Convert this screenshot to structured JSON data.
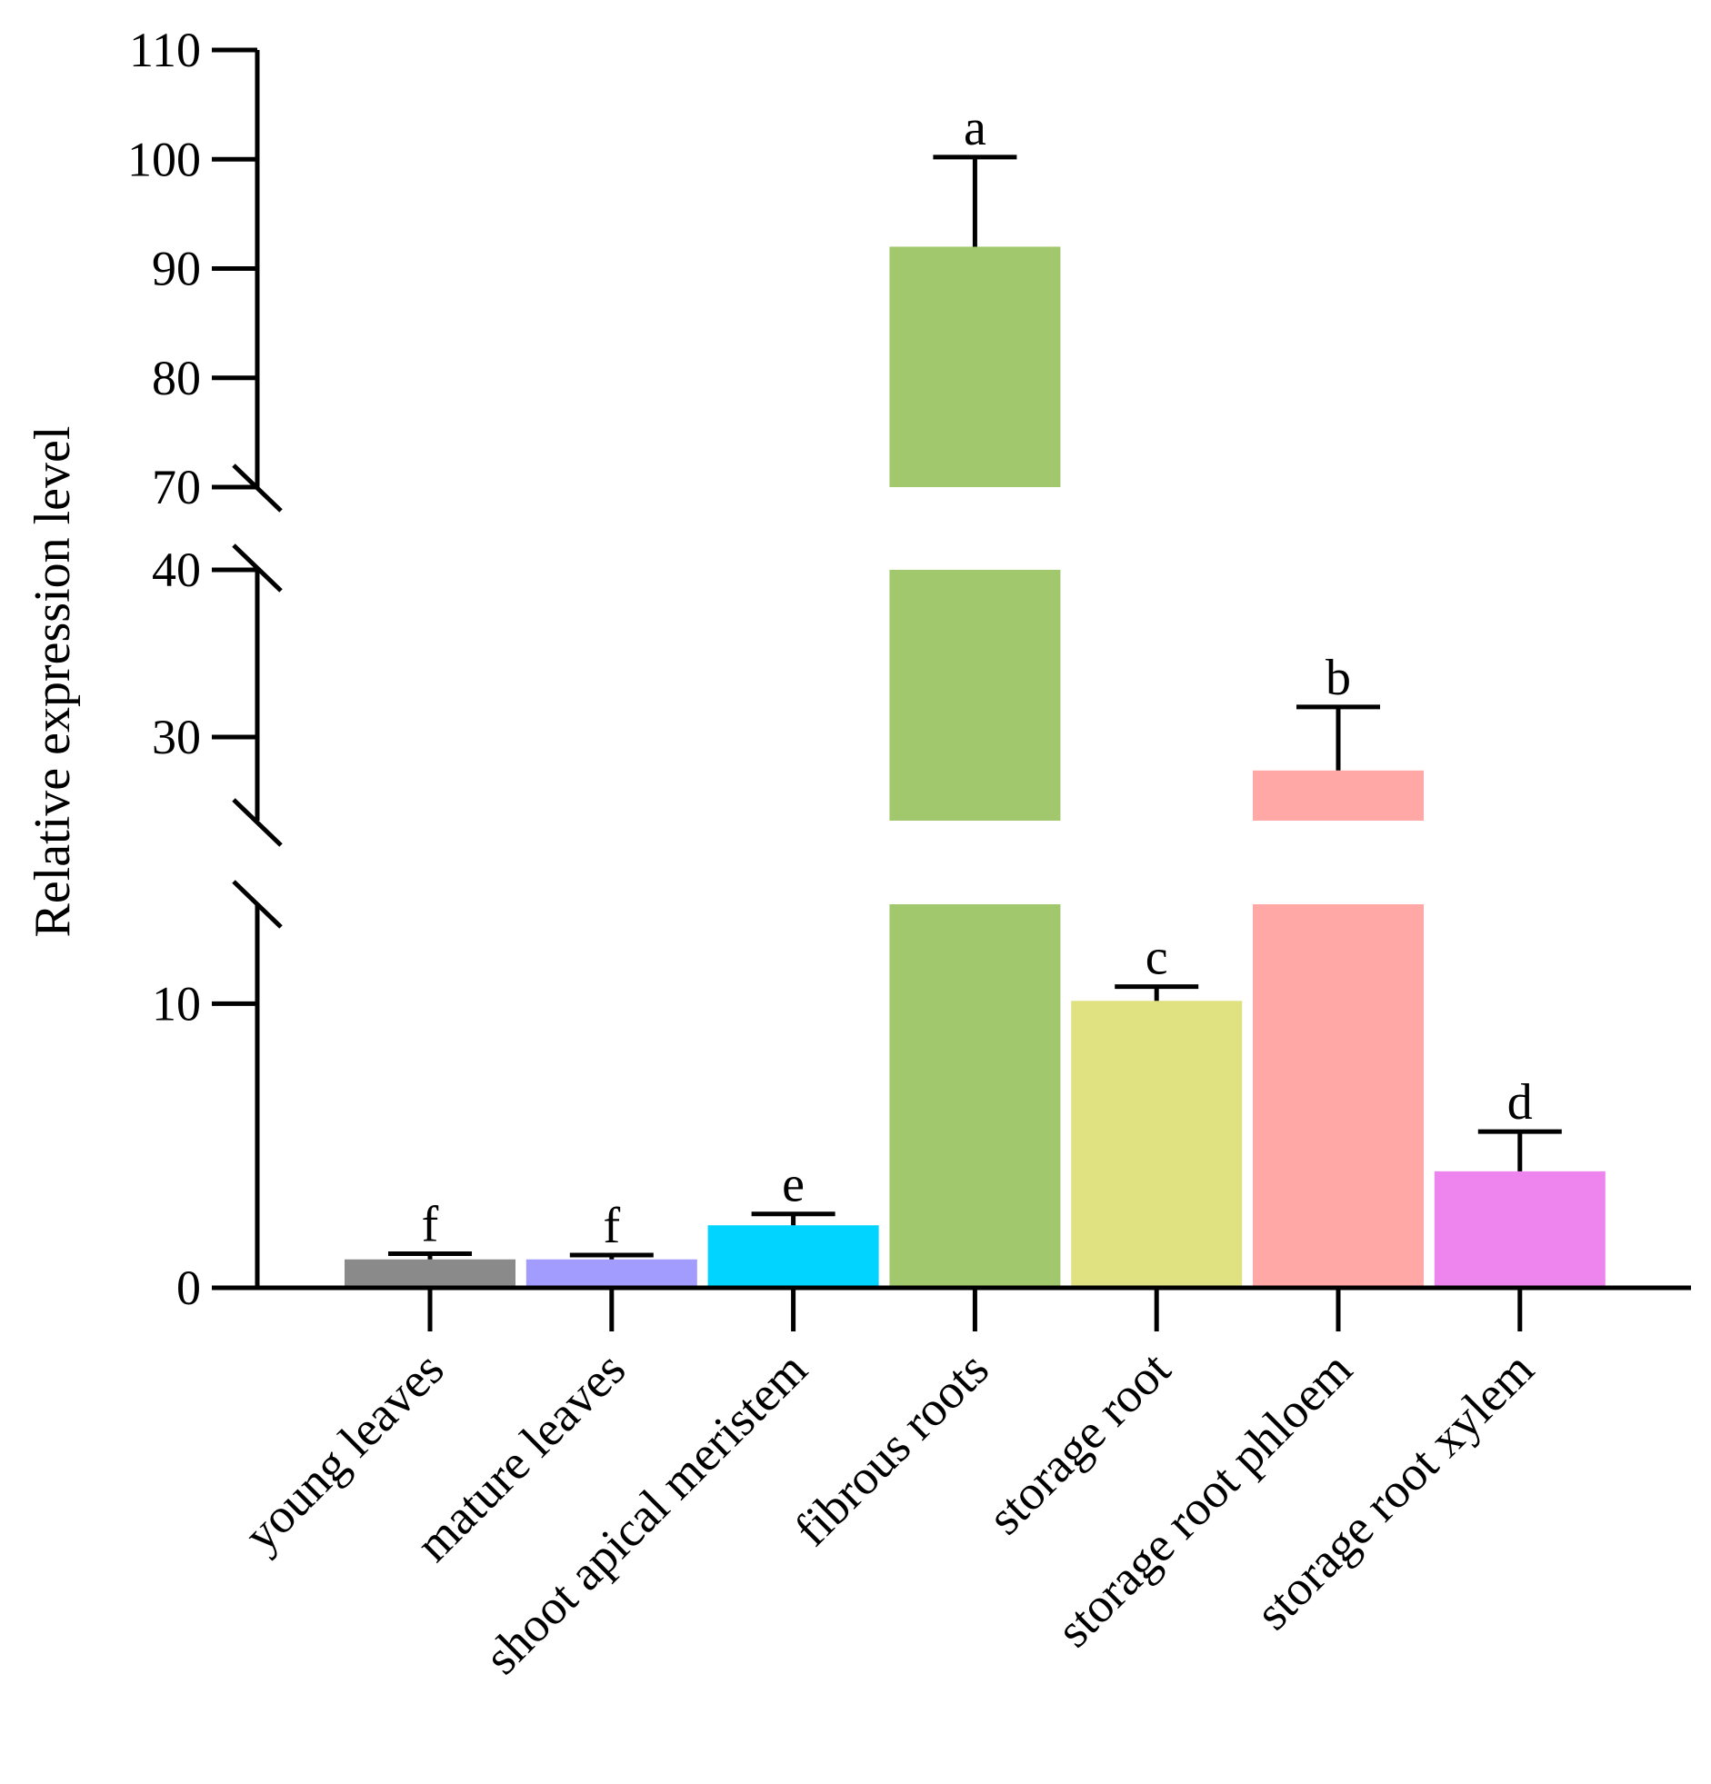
{
  "chart_data": {
    "type": "bar",
    "ylabel": "Relative expression level",
    "xlabel": "",
    "title": "",
    "y_axis_segments": [
      {
        "range": [
          0,
          13.5
        ],
        "ticks": [
          0,
          10
        ]
      },
      {
        "range": [
          25,
          40
        ],
        "ticks": [
          30,
          40
        ]
      },
      {
        "range": [
          70,
          110
        ],
        "ticks": [
          70,
          80,
          90,
          100,
          110
        ]
      }
    ],
    "axis_breaks": [
      "13.5-25",
      "40-70"
    ],
    "categories": [
      "young leaves",
      "mature leaves",
      "shoot apical meristem",
      "fibrous roots",
      "storage root",
      "storage root phloem",
      "storage root xylem"
    ],
    "values": [
      1.0,
      1.0,
      2.2,
      92.0,
      10.1,
      28.0,
      4.1
    ],
    "errors": [
      0.2,
      0.15,
      0.4,
      8.2,
      0.5,
      3.8,
      1.4
    ],
    "significance": [
      "f",
      "f",
      "e",
      "a",
      "c",
      "b",
      "d"
    ],
    "colors": [
      "#8a8a8a",
      "#a29cff",
      "#00d4ff",
      "#a1c86c",
      "#e0e281",
      "#ffa8a6",
      "#ee84ee"
    ]
  }
}
